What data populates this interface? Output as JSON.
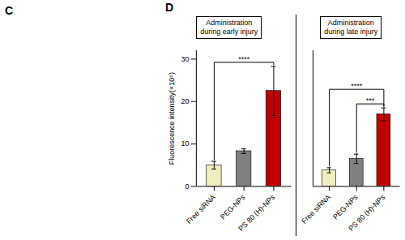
{
  "panel_labels": [
    "C",
    "D"
  ],
  "chart_data": [
    {
      "type": "bar",
      "title": "Administration\nduring early injury",
      "categories": [
        "Free siRNA",
        "PEG-NPs",
        "PS 80 (H)-NPs"
      ],
      "values": [
        5.0,
        8.3,
        22.5
      ],
      "errors": [
        0.9,
        0.55,
        5.8
      ],
      "colors": [
        "#f0edbe",
        "#808080",
        "#c00000"
      ],
      "ylabel": "Fluorescence intensity(×10⁶)",
      "ylim": [
        0,
        32
      ],
      "yticks": [
        0,
        10,
        20,
        30
      ],
      "annotations": [
        {
          "text": "****",
          "between": [
            "Free siRNA",
            "PS 80 (H)-NPs"
          ]
        }
      ]
    },
    {
      "type": "bar",
      "title": "Administration\nduring late injury",
      "categories": [
        "Free siRNA",
        "PEG-NPs",
        "PS 80 (H)-NPs"
      ],
      "values": [
        3.8,
        6.5,
        17.0
      ],
      "errors": [
        0.6,
        1.1,
        1.5
      ],
      "colors": [
        "#f0edbe",
        "#808080",
        "#c00000"
      ],
      "ylim": [
        0,
        32
      ],
      "tick_labels": "x",
      "annotations": [
        {
          "text": "****",
          "between": [
            "Free siRNA",
            "PS 80 (H)-NPs"
          ]
        },
        {
          "text": "***",
          "between": [
            "PEG-NPs",
            "PS 80 (H)-NPs"
          ]
        }
      ]
    }
  ]
}
